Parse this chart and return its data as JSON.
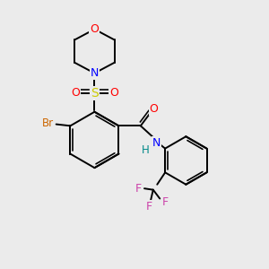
{
  "background_color": "#ebebeb",
  "bond_color": "#000000",
  "atom_colors": {
    "O": "#ff0000",
    "N": "#0000ff",
    "S": "#cccc00",
    "Br": "#cc6600",
    "F": "#cc44aa",
    "H": "#008888",
    "C": "#000000"
  },
  "figsize": [
    3.0,
    3.0
  ],
  "dpi": 100
}
